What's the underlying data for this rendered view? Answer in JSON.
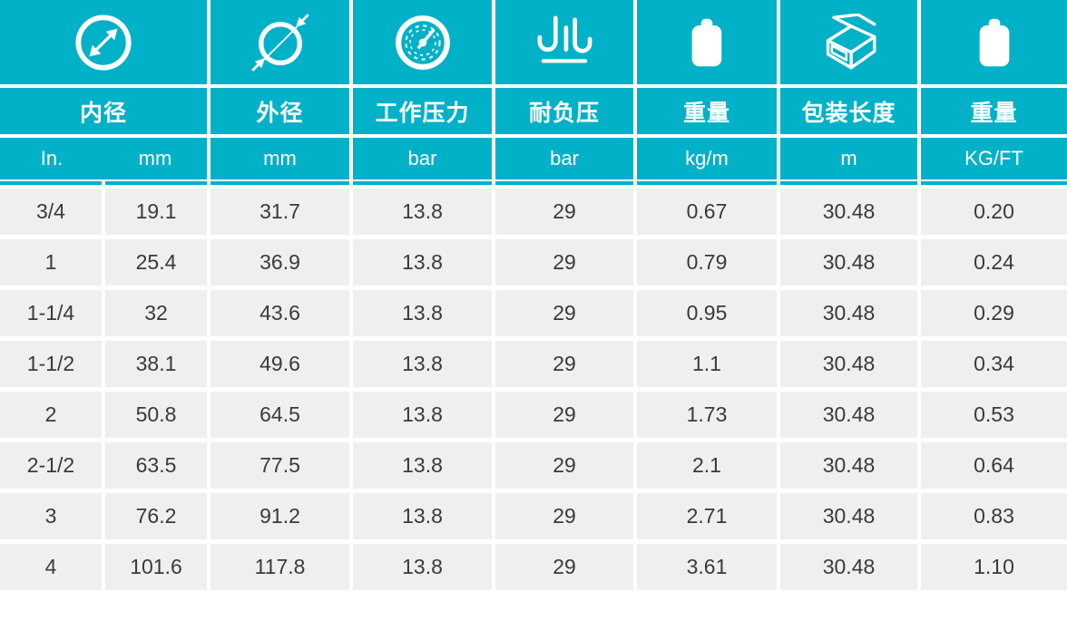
{
  "colors": {
    "accent": "#00b1c7",
    "cell_background": "#efefef",
    "data_text": "#3a3a3a",
    "header_text": "#ffffff"
  },
  "chart_data": {
    "type": "table",
    "columns": [
      {
        "icon": "inner-diameter",
        "label": "内径",
        "units": [
          "In.",
          "mm"
        ]
      },
      {
        "icon": "outer-diameter",
        "label": "外径",
        "units": [
          "mm"
        ]
      },
      {
        "icon": "pressure-gauge",
        "label": "工作压力",
        "units": [
          "bar"
        ]
      },
      {
        "icon": "vacuum-resistance",
        "label": "耐负压",
        "units": [
          "bar"
        ]
      },
      {
        "icon": "weight",
        "label": "重量",
        "units": [
          "kg/m"
        ]
      },
      {
        "icon": "package-box",
        "label": "包装长度",
        "units": [
          "m"
        ]
      },
      {
        "icon": "weight",
        "label": "重量",
        "units": [
          "KG/FT"
        ]
      }
    ],
    "rows": [
      [
        "3/4",
        "19.1",
        "31.7",
        "13.8",
        "29",
        "0.67",
        "30.48",
        "0.20"
      ],
      [
        "1",
        "25.4",
        "36.9",
        "13.8",
        "29",
        "0.79",
        "30.48",
        "0.24"
      ],
      [
        "1-1/4",
        "32",
        "43.6",
        "13.8",
        "29",
        "0.95",
        "30.48",
        "0.29"
      ],
      [
        "1-1/2",
        "38.1",
        "49.6",
        "13.8",
        "29",
        "1.1",
        "30.48",
        "0.34"
      ],
      [
        "2",
        "50.8",
        "64.5",
        "13.8",
        "29",
        "1.73",
        "30.48",
        "0.53"
      ],
      [
        "2-1/2",
        "63.5",
        "77.5",
        "13.8",
        "29",
        "2.1",
        "30.48",
        "0.64"
      ],
      [
        "3",
        "76.2",
        "91.2",
        "13.8",
        "29",
        "2.71",
        "30.48",
        "0.83"
      ],
      [
        "4",
        "101.6",
        "117.8",
        "13.8",
        "29",
        "3.61",
        "30.48",
        "1.10"
      ]
    ]
  }
}
